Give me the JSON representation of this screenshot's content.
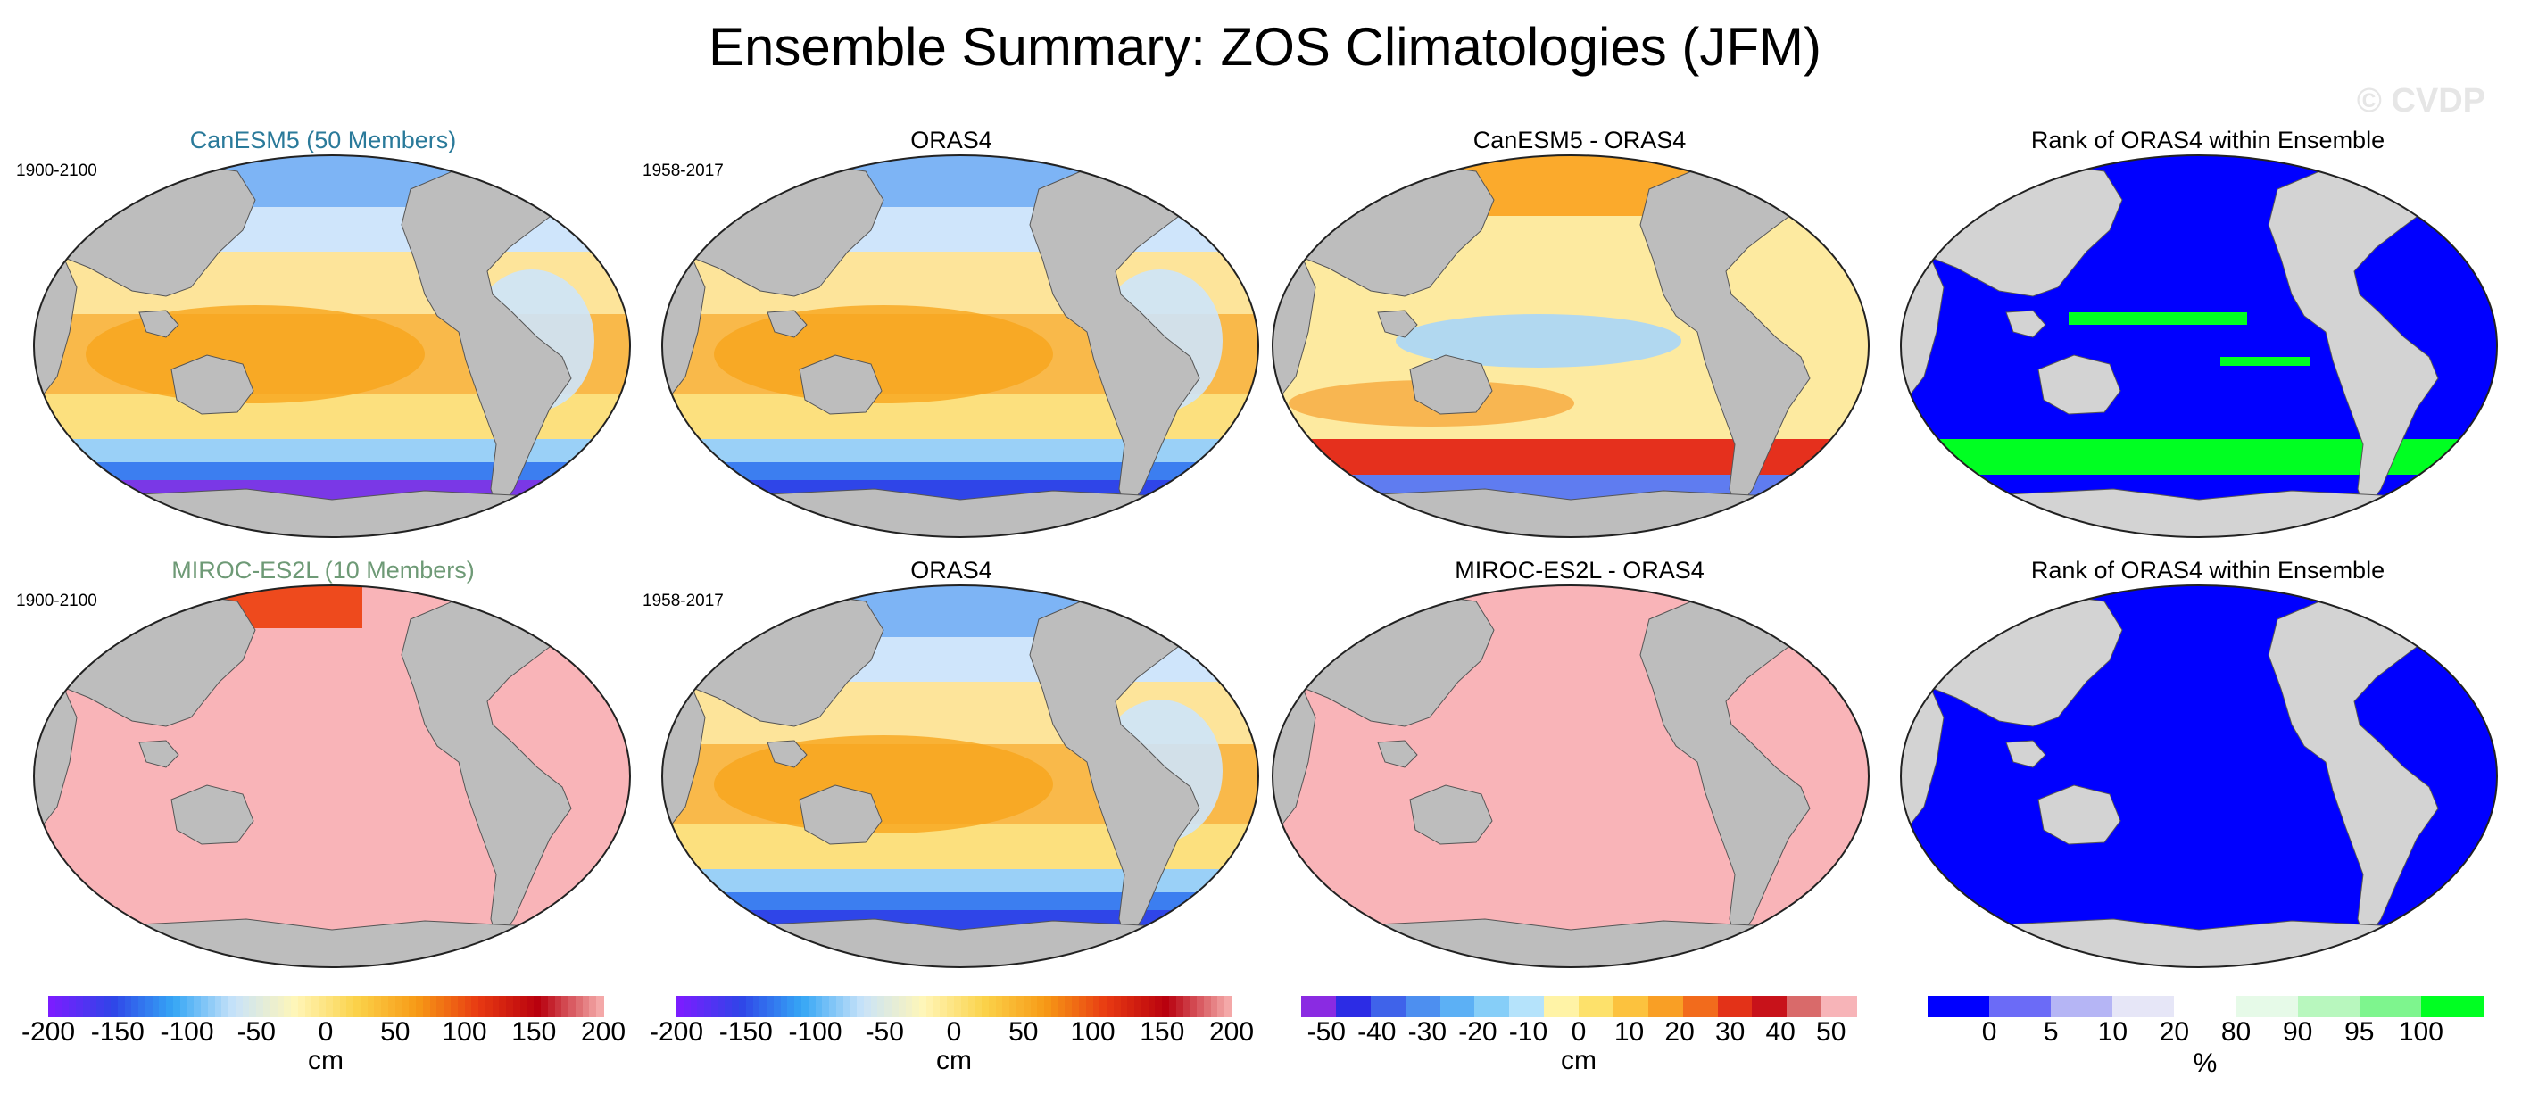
{
  "title": "Ensemble Summary: ZOS Climatologies (JFM)",
  "watermark": "© CVDP",
  "colors": {
    "land": "#bdbdbd",
    "pink": "#f9b4b8",
    "rank_blue": "#0000ff",
    "rank_green": "#00ff22",
    "model1_title": "#2a7a9a",
    "model2_title": "#6e9a76"
  },
  "panels": [
    {
      "title": "CanESM5 (50 Members)",
      "period": "1900-2100",
      "kind": "field_model"
    },
    {
      "title": "ORAS4",
      "period": "1958-2017",
      "kind": "field_obs"
    },
    {
      "title": "CanESM5 - ORAS4",
      "period": "",
      "kind": "diff"
    },
    {
      "title": "Rank of ORAS4 within Ensemble",
      "period": "",
      "kind": "rank"
    },
    {
      "title": "MIROC-ES2L (10 Members)",
      "period": "1900-2100",
      "kind": "pink_model"
    },
    {
      "title": "ORAS4",
      "period": "1958-2017",
      "kind": "field_obs"
    },
    {
      "title": "MIROC-ES2L - ORAS4",
      "period": "",
      "kind": "pink_diff"
    },
    {
      "title": "Rank of ORAS4 within Ensemble",
      "period": "",
      "kind": "rank_blue"
    }
  ],
  "chart_data": [
    {
      "type": "heatmap",
      "name": "colorbar-climatology-1",
      "units": "cm",
      "range": [
        -200,
        200
      ],
      "ticks": [
        "-200",
        "-150",
        "-100",
        "-50",
        "0",
        "50",
        "100",
        "150",
        "200"
      ]
    },
    {
      "type": "heatmap",
      "name": "colorbar-climatology-2",
      "units": "cm",
      "range": [
        -200,
        200
      ],
      "ticks": [
        "-200",
        "-150",
        "-100",
        "-50",
        "0",
        "50",
        "100",
        "150",
        "200"
      ]
    },
    {
      "type": "heatmap",
      "name": "colorbar-difference",
      "units": "cm",
      "range": [
        -55,
        55
      ],
      "ticks": [
        "-50",
        "-40",
        "-30",
        "-20",
        "-10",
        "0",
        "10",
        "20",
        "30",
        "40",
        "50"
      ]
    },
    {
      "type": "heatmap",
      "name": "colorbar-rank",
      "units": "%",
      "ticks": [
        "0",
        "5",
        "10",
        "20",
        "80",
        "90",
        "95",
        "100"
      ]
    }
  ]
}
